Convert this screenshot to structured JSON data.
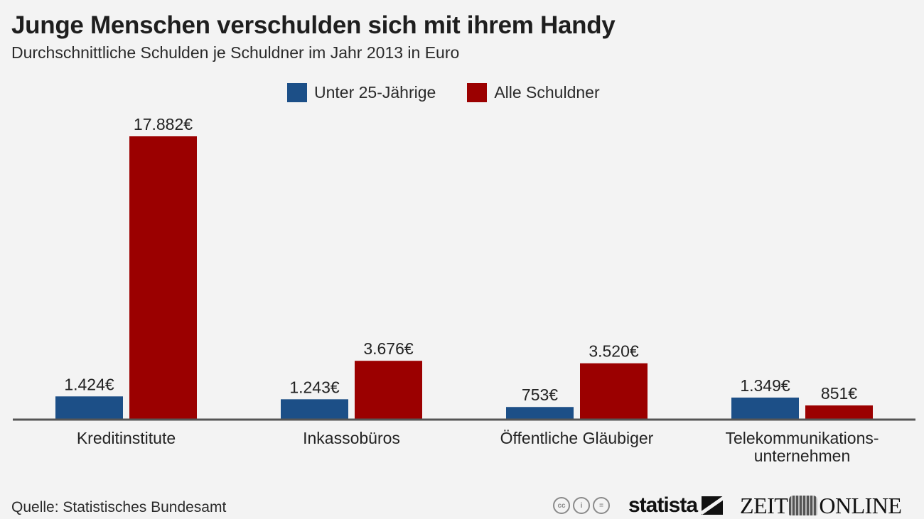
{
  "header": {
    "title": "Junge Menschen verschulden sich mit ihrem Handy",
    "subtitle": "Durchschnittliche Schulden je Schuldner im Jahr 2013 in Euro"
  },
  "footer": {
    "source": "Quelle: Statistisches Bundesamt",
    "cc_icons": [
      "cc-icon",
      "by-icon",
      "nd-icon"
    ],
    "cc_labels": [
      "cc",
      "i",
      "="
    ],
    "statista_label": "statista",
    "zeit_left": "ZEIT",
    "zeit_right": "ONLINE"
  },
  "chart_data": {
    "type": "bar",
    "title": "Junge Menschen verschulden sich mit ihrem Handy",
    "subtitle": "Durchschnittliche Schulden je Schuldner im Jahr 2013 in Euro",
    "xlabel": "",
    "ylabel": "",
    "ylim": [
      0,
      17882
    ],
    "grid": false,
    "legend_position": "top-center",
    "categories": [
      "Kreditinstitute",
      "Inkassobüros",
      "Öffentliche Gläubiger",
      "Telekommunikations-\nunternehmen"
    ],
    "series": [
      {
        "name": "Unter 25-Jährige",
        "color": "#1c4f87",
        "values": [
          1424,
          1243,
          753,
          1349
        ],
        "labels": [
          "1.424€",
          "1.243€",
          "753€",
          "1.349€"
        ]
      },
      {
        "name": "Alle Schuldner",
        "color": "#9b0000",
        "values": [
          17882,
          3676,
          3520,
          851
        ],
        "labels": [
          "17.882€",
          "3.676€",
          "3.520€",
          "851€"
        ]
      }
    ]
  }
}
